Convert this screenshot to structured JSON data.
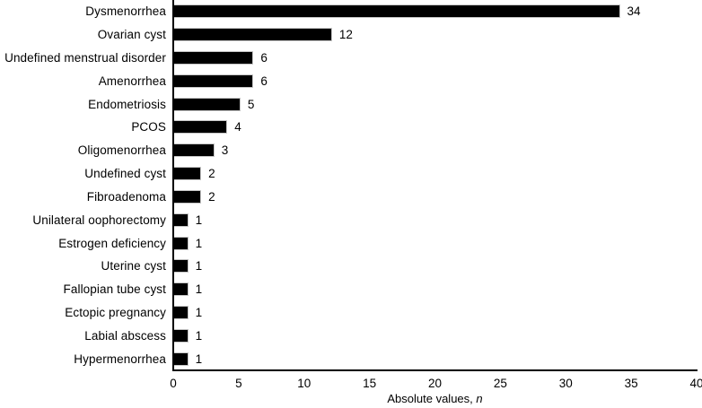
{
  "chart_data": {
    "type": "bar",
    "orientation": "horizontal",
    "categories": [
      "Dysmenorrhea",
      "Ovarian cyst",
      "Undefined menstrual disorder",
      "Amenorrhea",
      "Endometriosis",
      "PCOS",
      "Oligomenorrhea",
      "Undefined cyst",
      "Fibroadenoma",
      "Unilateral oophorectomy",
      "Estrogen deficiency",
      "Uterine cyst",
      "Fallopian tube cyst",
      "Ectopic pregnancy",
      "Labial abscess",
      "Hypermenorrhea"
    ],
    "values": [
      34,
      12,
      6,
      6,
      5,
      4,
      3,
      2,
      2,
      1,
      1,
      1,
      1,
      1,
      1,
      1
    ],
    "value_labels_shown": true,
    "title": "",
    "xlabel_prefix": "Absolute values, ",
    "xlabel_italic": "n",
    "ylabel": "",
    "xlim": [
      0,
      40
    ],
    "xticks": [
      0,
      5,
      10,
      15,
      20,
      25,
      30,
      35,
      40
    ],
    "grid": false,
    "legend": "none",
    "bar_color": "#000000",
    "bar_outline_color": "#c6c6c6",
    "axis_color": "#000000",
    "text_color": "#000000",
    "background_color": "#ffffff"
  }
}
